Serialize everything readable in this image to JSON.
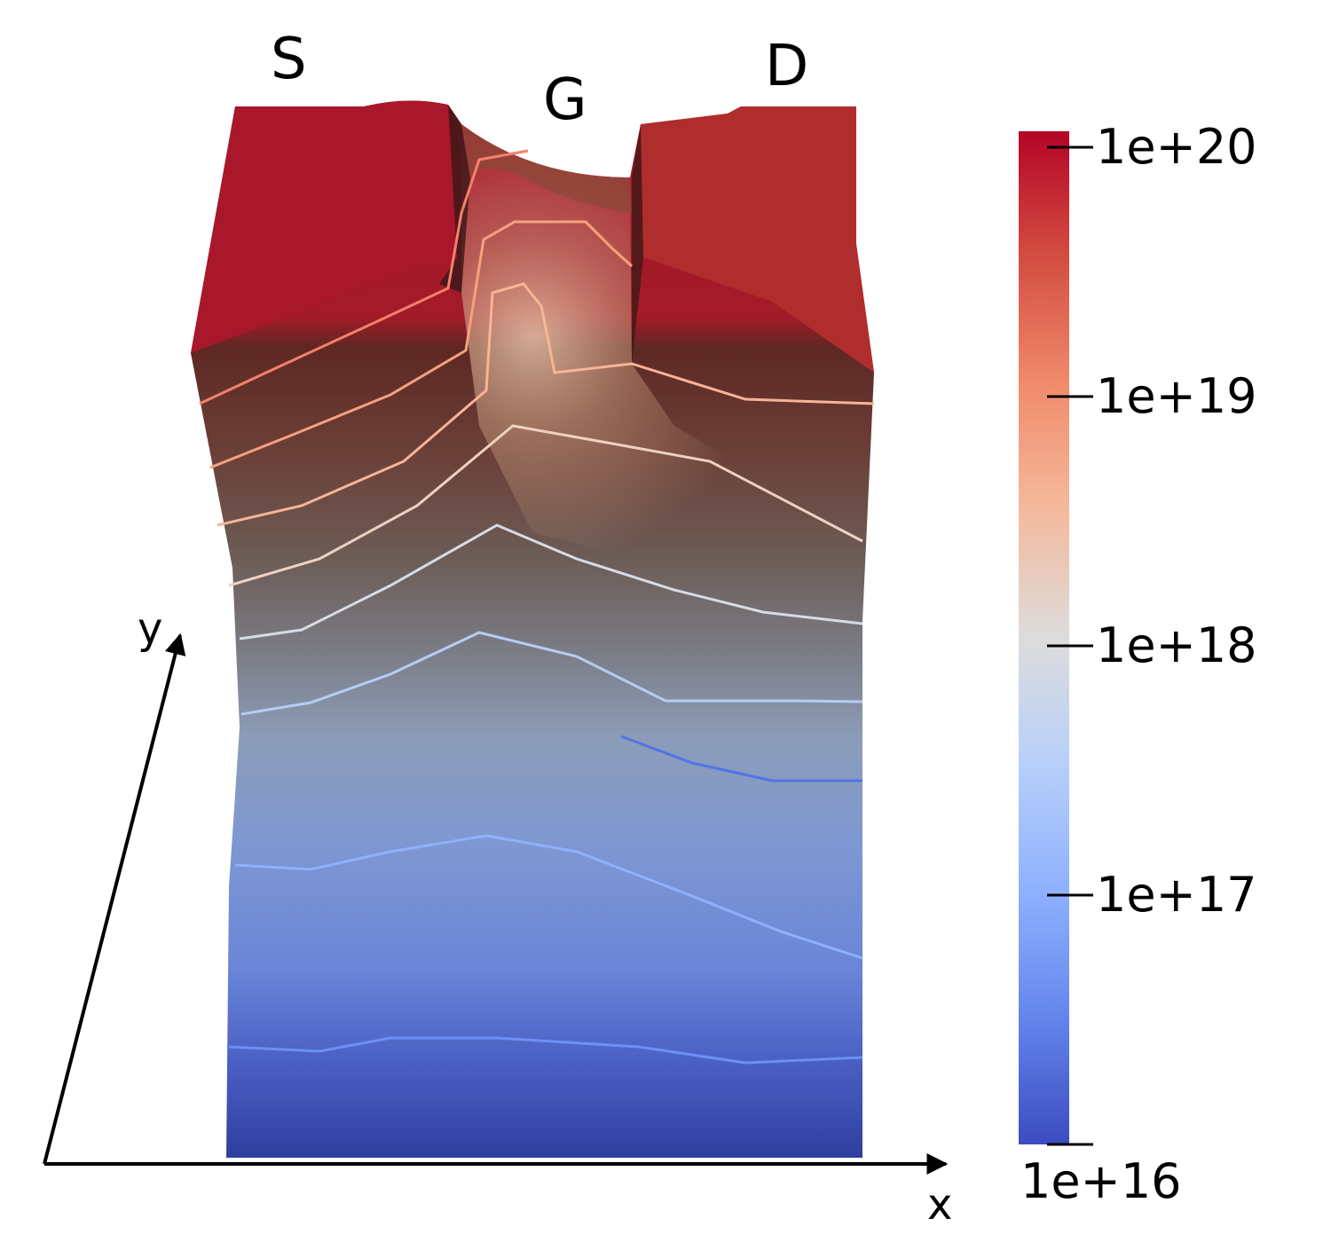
{
  "terminals": {
    "source": "S",
    "gate": "G",
    "drain": "D"
  },
  "axes": {
    "x": "x",
    "y": "y"
  },
  "colorbar": {
    "scale": "log",
    "range": [
      1e+16,
      1e+20
    ],
    "ticks": [
      "1e+20",
      "1e+19",
      "1e+18",
      "1e+17",
      "1e+16"
    ],
    "colormap": [
      "#b40426",
      "#f08b6b",
      "#dddcdc",
      "#8fb1fe",
      "#3b4cc0"
    ]
  },
  "contour_colors": [
    "#f4816a",
    "#f6a07f",
    "#f7b496",
    "#eed1c0",
    "#d6dce6",
    "#b5ccf4",
    "#8eb1fd",
    "#6d8ff5",
    "#5274e6"
  ],
  "colors": {
    "background": "#ffffff",
    "text": "#000000",
    "mesh_top": "#a8162a",
    "mesh_bottom": "#2f3f9e"
  }
}
